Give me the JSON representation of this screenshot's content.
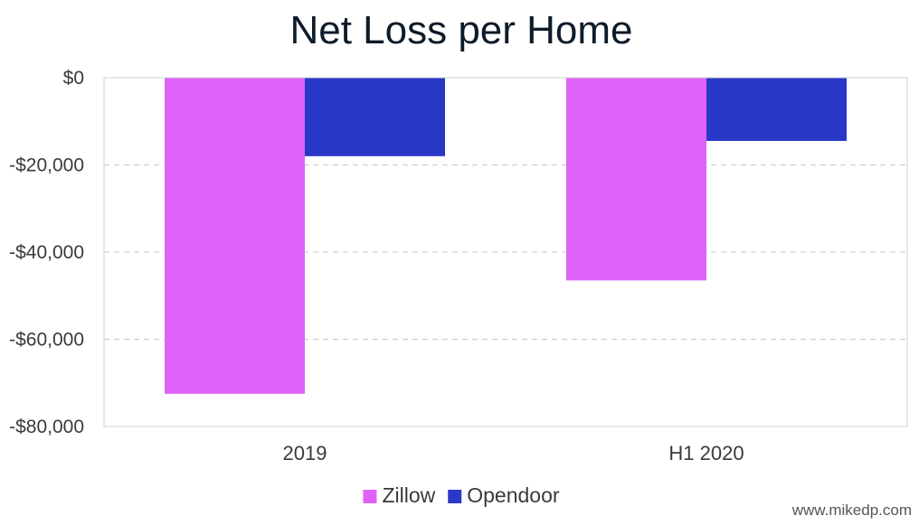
{
  "chart_data": {
    "type": "bar",
    "title": "Net Loss per Home",
    "xlabel": "",
    "ylabel": "",
    "categories": [
      "2019",
      "H1 2020"
    ],
    "series": [
      {
        "name": "Zillow",
        "color": "#df62f8",
        "values": [
          -72500,
          -46500
        ]
      },
      {
        "name": "Opendoor",
        "color": "#2a38c8",
        "values": [
          -18000,
          -14500
        ]
      }
    ],
    "ylim": [
      -80000,
      0
    ],
    "yticks": [
      0,
      -20000,
      -40000,
      -60000,
      -80000
    ],
    "ytick_labels": [
      "$0",
      "-$20,000",
      "-$40,000",
      "-$60,000",
      "-$80,000"
    ],
    "grid": true,
    "legend_position": "bottom"
  },
  "watermark": "www.mikedp.com"
}
